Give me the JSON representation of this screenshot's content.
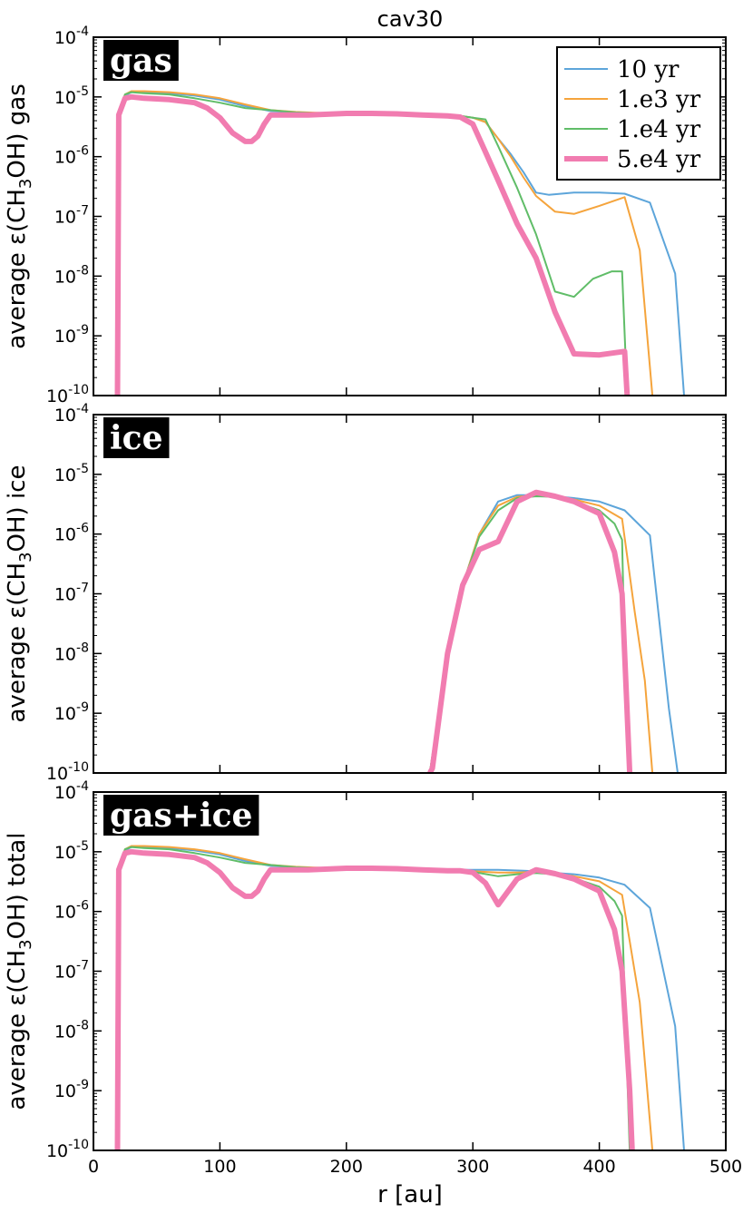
{
  "chart_data": {
    "type": "line",
    "title": "cav30",
    "xlabel": "r [au]",
    "xlim": [
      0,
      500
    ],
    "x_ticks": [
      "0",
      "100",
      "200",
      "300",
      "400",
      "500"
    ],
    "y_scale": "log",
    "ylim": [
      1e-10,
      0.0001
    ],
    "y_tick_values": [
      1e-10,
      1e-09,
      1e-08,
      1e-07,
      1e-06,
      1e-05,
      0.0001
    ],
    "y_tick_labels": [
      "10",
      "10",
      "10",
      "10",
      "10",
      "10",
      "10"
    ],
    "y_tick_exponents": [
      "-10",
      "-9",
      "-8",
      "-7",
      "-6",
      "-5",
      "-4"
    ],
    "legend": {
      "placement": "top-right",
      "entries": [
        {
          "label": "10 yr",
          "color": "#5da5da"
        },
        {
          "label": "1.e3 yr",
          "color": "#f5a43c"
        },
        {
          "label": "1.e4 yr",
          "color": "#60bd68"
        },
        {
          "label": "5.e4 yr",
          "color": "#f17cb0"
        }
      ]
    },
    "panels": [
      {
        "tag": "gas",
        "ylabel_prefix": "average ε(CH",
        "ylabel_sub": "3",
        "ylabel_suffix": "OH) gas",
        "series": [
          {
            "label": "10 yr",
            "color": "#5da5da",
            "width": 2,
            "x": [
              19,
              20,
              25,
              30,
              40,
              60,
              80,
              100,
              120,
              140,
              160,
              180,
              200,
              220,
              240,
              260,
              280,
              290,
              300,
              310,
              320,
              330,
              340,
              350,
              360,
              380,
              400,
              420,
              440,
              460,
              467
            ],
            "y": [
              1e-10,
              5e-06,
              1.05e-05,
              1.2e-05,
              1.2e-05,
              1.15e-05,
              1.05e-05,
              9e-06,
              7e-06,
              5.8e-06,
              5.5e-06,
              5.3e-06,
              5.4e-06,
              5.4e-06,
              5.3e-06,
              5.2e-06,
              5e-06,
              4.8e-06,
              4.5e-06,
              3.8e-06,
              2e-06,
              1.1e-06,
              5.5e-07,
              2.5e-07,
              2.3e-07,
              2.5e-07,
              2.5e-07,
              2.4e-07,
              1.7e-07,
              1.1e-08,
              1e-10
            ]
          },
          {
            "label": "1.e3 yr",
            "color": "#f5a43c",
            "width": 2,
            "x": [
              19,
              20,
              25,
              30,
              40,
              60,
              80,
              100,
              120,
              140,
              160,
              180,
              200,
              220,
              240,
              260,
              280,
              290,
              300,
              310,
              320,
              330,
              340,
              350,
              365,
              380,
              400,
              420,
              432,
              442
            ],
            "y": [
              1e-10,
              5e-06,
              1.1e-05,
              1.25e-05,
              1.25e-05,
              1.2e-05,
              1.1e-05,
              9.5e-06,
              7.5e-06,
              6e-06,
              5.6e-06,
              5.4e-06,
              5.4e-06,
              5.4e-06,
              5.3e-06,
              5.2e-06,
              5e-06,
              4.8e-06,
              4.5e-06,
              3.8e-06,
              2e-06,
              1e-06,
              4.5e-07,
              2.2e-07,
              1.2e-07,
              1.1e-07,
              1.5e-07,
              2.1e-07,
              2.7e-08,
              1e-10
            ]
          },
          {
            "label": "1.e4 yr",
            "color": "#60bd68",
            "width": 2,
            "x": [
              19,
              20,
              25,
              30,
              40,
              60,
              80,
              100,
              120,
              140,
              160,
              180,
              200,
              220,
              240,
              260,
              280,
              290,
              300,
              310,
              320,
              335,
              350,
              365,
              380,
              395,
              410,
              418,
              422
            ],
            "y": [
              1e-10,
              5e-06,
              1.1e-05,
              1.2e-05,
              1.15e-05,
              1.1e-05,
              9.5e-06,
              8e-06,
              6.5e-06,
              6e-06,
              5.5e-06,
              5.3e-06,
              5.4e-06,
              5.4e-06,
              5.3e-06,
              5.2e-06,
              5e-06,
              4.8e-06,
              4.5e-06,
              4.2e-06,
              1.5e-06,
              3e-07,
              5e-08,
              5.5e-09,
              4.5e-09,
              9e-09,
              1.2e-08,
              1.2e-08,
              1e-10
            ]
          },
          {
            "label": "5.e4 yr",
            "color": "#f17cb0",
            "width": 6,
            "x": [
              19,
              20,
              25,
              30,
              40,
              60,
              80,
              90,
              100,
              110,
              120,
              125,
              130,
              135,
              140,
              150,
              170,
              200,
              220,
              240,
              260,
              280,
              290,
              300,
              310,
              320,
              335,
              350,
              365,
              380,
              400,
              420,
              422
            ],
            "y": [
              1e-10,
              5e-06,
              9.5e-06,
              1e-05,
              9.5e-06,
              9e-06,
              8e-06,
              6.5e-06,
              4.5e-06,
              2.5e-06,
              1.8e-06,
              1.8e-06,
              2.2e-06,
              3.5e-06,
              5e-06,
              5e-06,
              5e-06,
              5.3e-06,
              5.3e-06,
              5.2e-06,
              5e-06,
              4.8e-06,
              4.6e-06,
              3.5e-06,
              1.2e-06,
              4e-07,
              7.5e-08,
              2e-08,
              2.5e-09,
              5e-10,
              4.8e-10,
              5.5e-10,
              1e-10
            ]
          }
        ]
      },
      {
        "tag": "ice",
        "ylabel_prefix": "average ε(CH",
        "ylabel_sub": "3",
        "ylabel_suffix": "OH) ice",
        "series": [
          {
            "label": "10 yr",
            "color": "#5da5da",
            "width": 2,
            "x": [
              266,
              280,
              292,
              305,
              320,
              335,
              350,
              365,
              380,
              400,
              420,
              440,
              455,
              462
            ],
            "y": [
              1e-10,
              1e-08,
              1.4e-07,
              1e-06,
              3.5e-06,
              4.5e-06,
              4.5e-06,
              4.3e-06,
              4e-06,
              3.5e-06,
              2.5e-06,
              9.5e-07,
              1.2e-09,
              1e-10
            ]
          },
          {
            "label": "1.e3 yr",
            "color": "#f5a43c",
            "width": 2,
            "x": [
              266,
              280,
              292,
              305,
              320,
              335,
              350,
              365,
              380,
              400,
              418,
              428,
              436,
              442
            ],
            "y": [
              1e-10,
              1e-08,
              1.4e-07,
              1e-06,
              3e-06,
              4.2e-06,
              4.5e-06,
              4.2e-06,
              3.8e-06,
              3e-06,
              1.8e-06,
              5e-08,
              3.5e-09,
              1e-10
            ]
          },
          {
            "label": "1.e4 yr",
            "color": "#60bd68",
            "width": 2,
            "x": [
              266,
              280,
              292,
              305,
              320,
              335,
              350,
              365,
              380,
              400,
              412,
              418,
              420,
              424
            ],
            "y": [
              1e-10,
              1e-08,
              1.4e-07,
              9e-07,
              2.5e-06,
              4e-06,
              4.3e-06,
              4.2e-06,
              3.5e-06,
              2.5e-06,
              1.5e-06,
              8e-07,
              1e-08,
              1e-10
            ]
          },
          {
            "label": "5.e4 yr",
            "color": "#f17cb0",
            "width": 6,
            "x": [
              266,
              268,
              280,
              292,
              305,
              320,
              335,
              350,
              365,
              380,
              400,
              412,
              418,
              420,
              424
            ],
            "y": [
              1e-10,
              1.2e-10,
              1e-08,
              1.4e-07,
              5.5e-07,
              7.5e-07,
              3.5e-06,
              5e-06,
              4.3e-06,
              3.5e-06,
              2.2e-06,
              5e-07,
              1e-07,
              1e-08,
              1e-10
            ]
          }
        ]
      },
      {
        "tag": "gas+ice",
        "ylabel_prefix": "average ε(CH",
        "ylabel_sub": "3",
        "ylabel_suffix": "OH) total",
        "series": [
          {
            "label": "10 yr",
            "color": "#5da5da",
            "width": 2,
            "x": [
              19,
              20,
              25,
              30,
              40,
              60,
              80,
              100,
              120,
              140,
              160,
              180,
              200,
              220,
              240,
              260,
              280,
              300,
              320,
              340,
              350,
              360,
              380,
              400,
              420,
              440,
              460,
              467
            ],
            "y": [
              1e-10,
              5e-06,
              1.05e-05,
              1.2e-05,
              1.2e-05,
              1.15e-05,
              1.05e-05,
              9e-06,
              7e-06,
              5.8e-06,
              5.5e-06,
              5.3e-06,
              5.4e-06,
              5.4e-06,
              5.3e-06,
              5.2e-06,
              5e-06,
              5e-06,
              5e-06,
              4.8e-06,
              4.7e-06,
              4.5e-06,
              4.2e-06,
              3.7e-06,
              2.8e-06,
              1.15e-06,
              1.2e-08,
              1e-10
            ]
          },
          {
            "label": "1.e3 yr",
            "color": "#f5a43c",
            "width": 2,
            "x": [
              19,
              20,
              25,
              30,
              40,
              60,
              80,
              100,
              120,
              140,
              160,
              180,
              200,
              220,
              240,
              260,
              280,
              300,
              320,
              335,
              350,
              365,
              380,
              400,
              418,
              432,
              442
            ],
            "y": [
              1e-10,
              5e-06,
              1.1e-05,
              1.25e-05,
              1.25e-05,
              1.2e-05,
              1.1e-05,
              9.5e-06,
              7.5e-06,
              6e-06,
              5.6e-06,
              5.4e-06,
              5.4e-06,
              5.4e-06,
              5.3e-06,
              5.2e-06,
              5e-06,
              4.7e-06,
              4.5e-06,
              4.5e-06,
              4.6e-06,
              4.3e-06,
              3.9e-06,
              3.2e-06,
              1.9e-06,
              3e-08,
              1e-10
            ]
          },
          {
            "label": "1.e4 yr",
            "color": "#60bd68",
            "width": 2,
            "x": [
              19,
              20,
              25,
              30,
              40,
              60,
              80,
              100,
              120,
              140,
              160,
              180,
              200,
              220,
              240,
              260,
              280,
              300,
              320,
              335,
              350,
              365,
              380,
              400,
              412,
              418,
              424
            ],
            "y": [
              1e-10,
              5e-06,
              1.1e-05,
              1.2e-05,
              1.15e-05,
              1.1e-05,
              9.5e-06,
              8e-06,
              6.5e-06,
              6e-06,
              5.5e-06,
              5.3e-06,
              5.4e-06,
              5.4e-06,
              5.3e-06,
              5.2e-06,
              5e-06,
              4.6e-06,
              3.9e-06,
              4.2e-06,
              4.4e-06,
              4.2e-06,
              3.6e-06,
              2.6e-06,
              1.5e-06,
              8.5e-07,
              1e-10
            ]
          },
          {
            "label": "5.e4 yr",
            "color": "#f17cb0",
            "width": 6,
            "x": [
              19,
              20,
              25,
              30,
              40,
              60,
              80,
              90,
              100,
              110,
              120,
              125,
              130,
              135,
              140,
              150,
              170,
              200,
              220,
              240,
              260,
              280,
              290,
              300,
              310,
              320,
              335,
              350,
              365,
              380,
              400,
              412,
              418,
              424,
              426
            ],
            "y": [
              1e-10,
              5e-06,
              9.5e-06,
              1e-05,
              9.5e-06,
              9e-06,
              8e-06,
              6.5e-06,
              4.5e-06,
              2.5e-06,
              1.8e-06,
              1.8e-06,
              2.2e-06,
              3.5e-06,
              5e-06,
              5e-06,
              5e-06,
              5.3e-06,
              5.3e-06,
              5.2e-06,
              5e-06,
              4.8e-06,
              4.8e-06,
              4.5e-06,
              3e-06,
              1.3e-06,
              3.5e-06,
              5e-06,
              4.3e-06,
              3.5e-06,
              2.2e-06,
              5e-07,
              1e-07,
              1e-09,
              1e-10
            ]
          }
        ]
      }
    ]
  }
}
